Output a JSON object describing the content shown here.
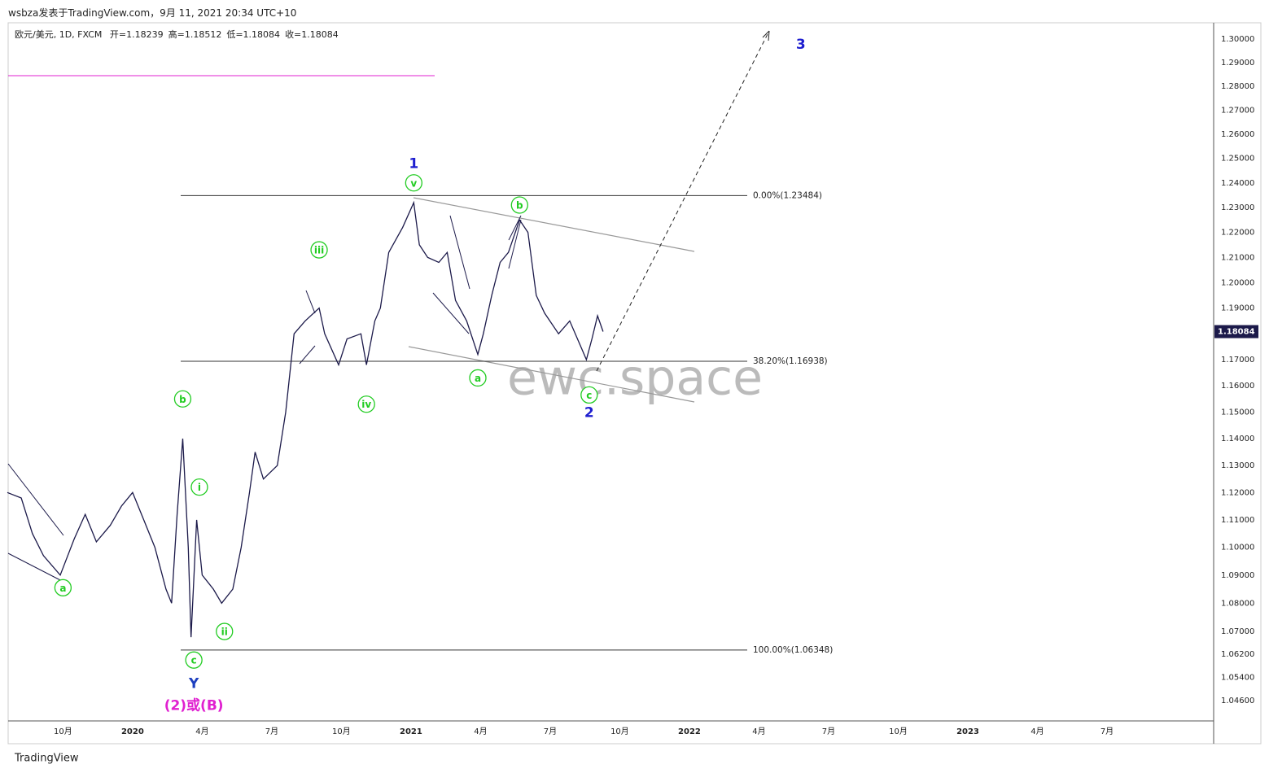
{
  "chart_data": {
    "type": "line",
    "source": "wsbza发表于TradingView.com，9月 11, 2021 20:34 UTC+10",
    "title": "欧元/美元, 1D, FXCM",
    "ohlc_labels": [
      "开=1.18239",
      "高=1.18512",
      "低=1.18084",
      "收=1.18084"
    ],
    "watermark": "ewc.space",
    "footer": "TradingView",
    "log_scale": true,
    "grid": false,
    "xlim": [
      2019.553,
      2023.883
    ],
    "ylim": [
      1.039,
      1.307
    ],
    "xticks": [
      {
        "value": 2019.75,
        "label": "10月"
      },
      {
        "value": 2020,
        "label": "2020"
      },
      {
        "value": 2020.25,
        "label": "4月"
      },
      {
        "value": 2020.5,
        "label": "7月"
      },
      {
        "value": 2020.75,
        "label": "10月"
      },
      {
        "value": 2021,
        "label": "2021"
      },
      {
        "value": 2021.25,
        "label": "4月"
      },
      {
        "value": 2021.5,
        "label": "7月"
      },
      {
        "value": 2021.75,
        "label": "10月"
      },
      {
        "value": 2022,
        "label": "2022"
      },
      {
        "value": 2022.25,
        "label": "4月"
      },
      {
        "value": 2022.5,
        "label": "7月"
      },
      {
        "value": 2022.75,
        "label": "10月"
      },
      {
        "value": 2023,
        "label": "2023"
      },
      {
        "value": 2023.25,
        "label": "4月"
      },
      {
        "value": 2023.5,
        "label": "7月"
      }
    ],
    "yticks": [
      {
        "value": 1.3,
        "label": "1.30000"
      },
      {
        "value": 1.29,
        "label": "1.29000"
      },
      {
        "value": 1.28,
        "label": "1.28000"
      },
      {
        "value": 1.27,
        "label": "1.27000"
      },
      {
        "value": 1.26,
        "label": "1.26000"
      },
      {
        "value": 1.25,
        "label": "1.25000"
      },
      {
        "value": 1.24,
        "label": "1.24000"
      },
      {
        "value": 1.23,
        "label": "1.23000"
      },
      {
        "value": 1.22,
        "label": "1.22000"
      },
      {
        "value": 1.21,
        "label": "1.21000"
      },
      {
        "value": 1.2,
        "label": "1.20000"
      },
      {
        "value": 1.19,
        "label": "1.19000"
      },
      {
        "value": 1.17,
        "label": "1.17000"
      },
      {
        "value": 1.16,
        "label": "1.16000"
      },
      {
        "value": 1.15,
        "label": "1.15000"
      },
      {
        "value": 1.14,
        "label": "1.14000"
      },
      {
        "value": 1.13,
        "label": "1.13000"
      },
      {
        "value": 1.12,
        "label": "1.12000"
      },
      {
        "value": 1.11,
        "label": "1.11000"
      },
      {
        "value": 1.1,
        "label": "1.10000"
      },
      {
        "value": 1.09,
        "label": "1.09000"
      },
      {
        "value": 1.08,
        "label": "1.08000"
      },
      {
        "value": 1.07,
        "label": "1.07000"
      },
      {
        "value": 1.062,
        "label": "1.06200"
      },
      {
        "value": 1.054,
        "label": "1.05400"
      },
      {
        "value": 1.046,
        "label": "1.04600"
      }
    ],
    "last_price": {
      "value": 1.18084,
      "label": "1.18084"
    },
    "series": [
      {
        "name": "欧元/美元",
        "color": "#1c1a4a",
        "x": [
          2019.55,
          2019.6,
          2019.64,
          2019.68,
          2019.74,
          2019.79,
          2019.83,
          2019.87,
          2019.92,
          2019.96,
          2020.0,
          2020.04,
          2020.08,
          2020.12,
          2020.14,
          2020.16,
          2020.18,
          2020.2,
          2020.21,
          2020.23,
          2020.25,
          2020.29,
          2020.32,
          2020.36,
          2020.39,
          2020.42,
          2020.44,
          2020.47,
          2020.52,
          2020.55,
          2020.58,
          2020.62,
          2020.67,
          2020.69,
          2020.74,
          2020.77,
          2020.82,
          2020.84,
          2020.87,
          2020.89,
          2020.92,
          2020.97,
          2021.01,
          2021.03,
          2021.06,
          2021.1,
          2021.13,
          2021.16,
          2021.2,
          2021.24,
          2021.26,
          2021.29,
          2021.32,
          2021.35,
          2021.39,
          2021.42,
          2021.45,
          2021.48,
          2021.53,
          2021.57,
          2021.61,
          2021.63,
          2021.65,
          2021.67,
          2021.69
        ],
        "values": [
          1.12,
          1.118,
          1.105,
          1.097,
          1.09,
          1.103,
          1.112,
          1.102,
          1.108,
          1.115,
          1.12,
          1.11,
          1.1,
          1.085,
          1.08,
          1.112,
          1.14,
          1.1,
          1.068,
          1.11,
          1.09,
          1.085,
          1.08,
          1.085,
          1.1,
          1.12,
          1.135,
          1.125,
          1.13,
          1.15,
          1.18,
          1.185,
          1.19,
          1.18,
          1.168,
          1.178,
          1.18,
          1.168,
          1.185,
          1.19,
          1.212,
          1.222,
          1.232,
          1.215,
          1.21,
          1.208,
          1.212,
          1.193,
          1.185,
          1.172,
          1.18,
          1.195,
          1.208,
          1.212,
          1.225,
          1.22,
          1.195,
          1.188,
          1.18,
          1.185,
          1.175,
          1.17,
          1.178,
          1.187,
          1.18084
        ]
      }
    ],
    "levels": [
      {
        "value": 1.23484,
        "label": "0.00%(1.23484)"
      },
      {
        "value": 1.16938,
        "label": "38.20%(1.16938)"
      },
      {
        "value": 1.06348,
        "label": "100.00%(1.06348)"
      }
    ],
    "annotations": [
      {
        "text": "a",
        "x": 2019.75,
        "y": 1.0855,
        "color": "#22cc22",
        "circled": true
      },
      {
        "text": "b",
        "x": 2020.18,
        "y": 1.155,
        "color": "#22cc22",
        "circled": true
      },
      {
        "text": "c",
        "x": 2020.22,
        "y": 1.06,
        "color": "#22cc22",
        "circled": true
      },
      {
        "text": "Y",
        "x": 2020.22,
        "y": 1.052,
        "color": "#1d3fbf",
        "circled": false
      },
      {
        "text": "(2)或(B)",
        "x": 2020.22,
        "y": 1.0445,
        "color": "#e020d0",
        "circled": false
      },
      {
        "text": "i",
        "x": 2020.24,
        "y": 1.122,
        "color": "#22cc22",
        "circled": true
      },
      {
        "text": "ii",
        "x": 2020.33,
        "y": 1.07,
        "color": "#22cc22",
        "circled": true
      },
      {
        "text": "iii",
        "x": 2020.67,
        "y": 1.213,
        "color": "#22cc22",
        "circled": true
      },
      {
        "text": "iv",
        "x": 2020.84,
        "y": 1.153,
        "color": "#22cc22",
        "circled": true
      },
      {
        "text": "v",
        "x": 2021.01,
        "y": 1.24,
        "color": "#22cc22",
        "circled": true
      },
      {
        "text": "1",
        "x": 2021.01,
        "y": 1.248,
        "color": "#1d1dcf",
        "circled": false
      },
      {
        "text": "a",
        "x": 2021.24,
        "y": 1.163,
        "color": "#22cc22",
        "circled": true
      },
      {
        "text": "b",
        "x": 2021.39,
        "y": 1.231,
        "color": "#22cc22",
        "circled": true
      },
      {
        "text": "c",
        "x": 2021.64,
        "y": 1.1565,
        "color": "#22cc22",
        "circled": true
      },
      {
        "text": "2",
        "x": 2021.64,
        "y": 1.15,
        "color": "#1d1dcf",
        "circled": false
      },
      {
        "text": "3",
        "x": 2022.4,
        "y": 1.298,
        "color": "#1d1dcf",
        "circled": false
      }
    ]
  }
}
